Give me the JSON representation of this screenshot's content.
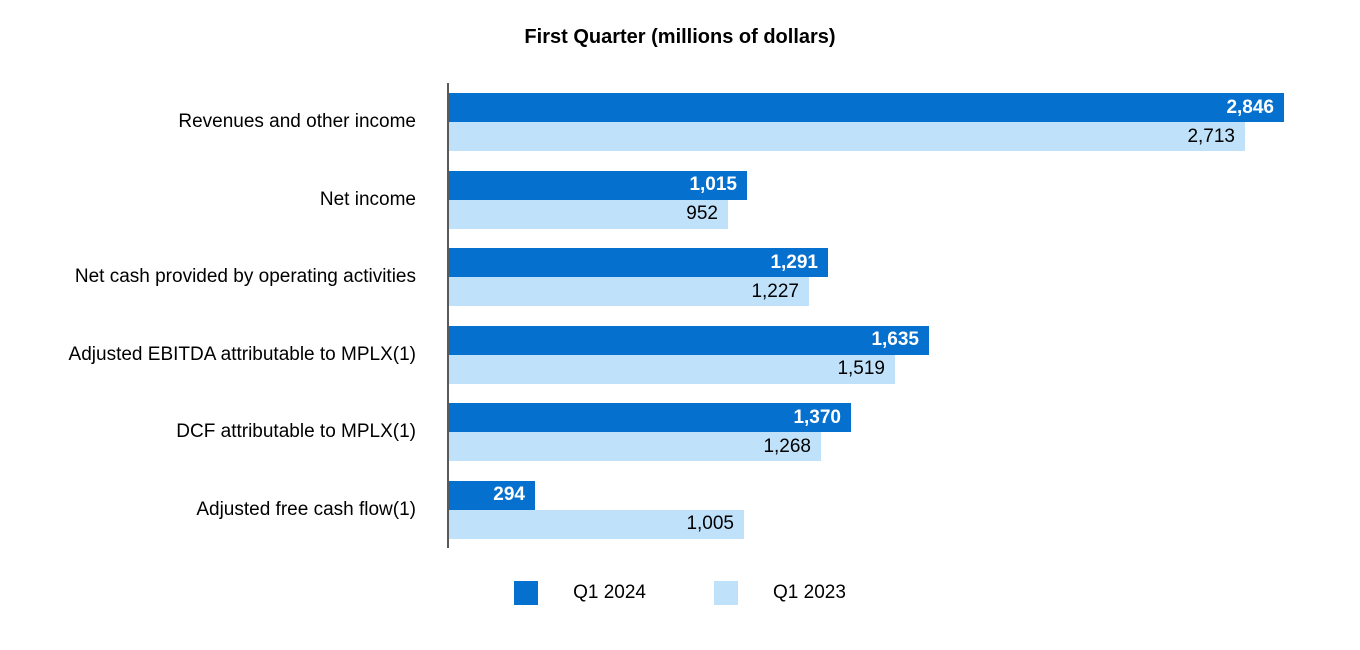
{
  "title": "First Quarter (millions of dollars)",
  "colors": {
    "q1_2024_bar": "#0670CE",
    "q1_2023_bar": "#BFE1FA",
    "axis_line": "#595959",
    "value_label_on_dark": "#FFFFFF",
    "value_label_on_light": "#000000",
    "text": "#000000"
  },
  "chart_data": {
    "type": "bar",
    "orientation": "horizontal",
    "title": "First Quarter (millions of dollars)",
    "categories": [
      "Revenues and other income",
      "Net income",
      "Net cash provided by operating activities",
      "Adjusted EBITDA attributable to MPLX(1)",
      "DCF attributable to MPLX(1)",
      "Adjusted free cash flow(1)"
    ],
    "series": [
      {
        "name": "Q1 2024",
        "color": "#0670CE",
        "values": [
          2846,
          1015,
          1291,
          1635,
          1370,
          294
        ]
      },
      {
        "name": "Q1 2023",
        "color": "#BFE1FA",
        "values": [
          2713,
          952,
          1227,
          1519,
          1268,
          1005
        ]
      }
    ],
    "xlim": [
      0,
      2900
    ],
    "grid": false,
    "value_labels": "inside-end",
    "legend_position": "bottom"
  },
  "legend": {
    "items": [
      {
        "label": "Q1 2024"
      },
      {
        "label": "Q1 2023"
      }
    ]
  }
}
